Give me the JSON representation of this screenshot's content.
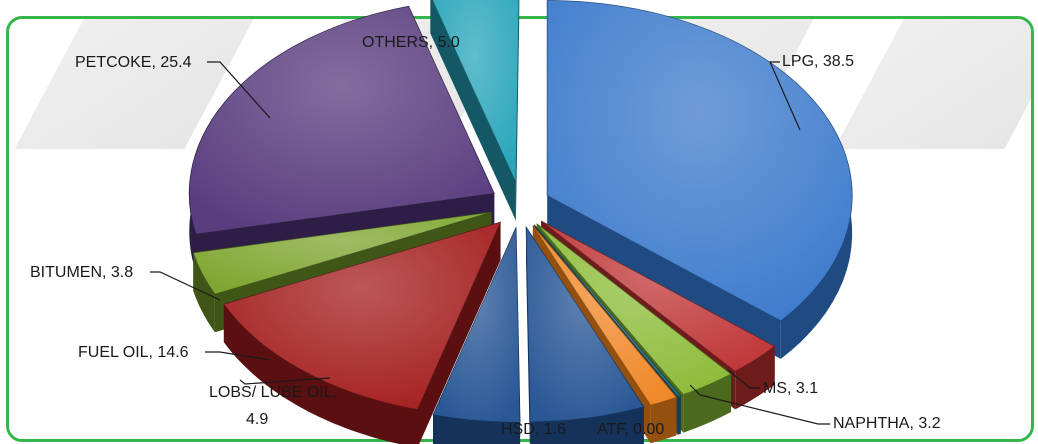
{
  "chart_data": {
    "type": "pie",
    "title": "",
    "slices": [
      {
        "label": "LPG, 38.5",
        "name": "LPG",
        "value": 38.5,
        "color": "#3f7ccc",
        "side": "#1f4a82"
      },
      {
        "label": "MS, 3.1",
        "name": "MS",
        "value": 3.1,
        "color": "#c0393a",
        "side": "#6e1b1b"
      },
      {
        "label": "NAPHTHA, 3.2",
        "name": "NAPHTHA",
        "value": 3.2,
        "color": "#8ebd3c",
        "side": "#4b6a1d"
      },
      {
        "label": "ATF, 0.00",
        "name": "ATF",
        "value": 0.0,
        "color": "#2c6d7e",
        "side": "#16404b"
      },
      {
        "label": "HSD, 1.6",
        "name": "HSD",
        "value": 1.6,
        "color": "#f0892b",
        "side": "#93500f"
      },
      {
        "label": "",
        "name": "",
        "value": 6.5,
        "color": "#2a5896",
        "side": "#15325a"
      },
      {
        "label": "LOBS/ LUBE OIL, 4.9",
        "name": "LOBS/ LUBE OIL",
        "value": 4.9,
        "color": "#2a5896",
        "side": "#15325a"
      },
      {
        "label": "FUEL OIL, 14.6",
        "name": "FUEL OIL",
        "value": 14.6,
        "color": "#a52020",
        "side": "#5a1010"
      },
      {
        "label": "BITUMEN, 3.8",
        "name": "BITUMEN",
        "value": 3.8,
        "color": "#7fa630",
        "side": "#3f5617"
      },
      {
        "label": "PETCOKE, 25.4",
        "name": "PETCOKE",
        "value": 25.4,
        "color": "#5a3d7f",
        "side": "#2e1e45"
      },
      {
        "label": "OTHERS, 5.0",
        "name": "OTHERS",
        "value": 5.0,
        "color": "#2aa6bb",
        "side": "#145866"
      }
    ]
  },
  "labels": {
    "lpg": "LPG, 38.5",
    "ms": "MS, 3.1",
    "naphtha": "NAPHTHA, 3.2",
    "atf": "ATF, 0.00",
    "hsd": "HSD, 1.6",
    "lobs_line1": "LOBS/ LUBE OIL,",
    "lobs_line2": "4.9",
    "fuel_oil": "FUEL OIL, 14.6",
    "bitumen": "BITUMEN, 3.8",
    "petcoke": "PETCOKE, 25.4",
    "others": "OTHERS, 5.0"
  },
  "colors": {
    "frame_border": "#35b64a",
    "text": "#1a1a1a"
  }
}
